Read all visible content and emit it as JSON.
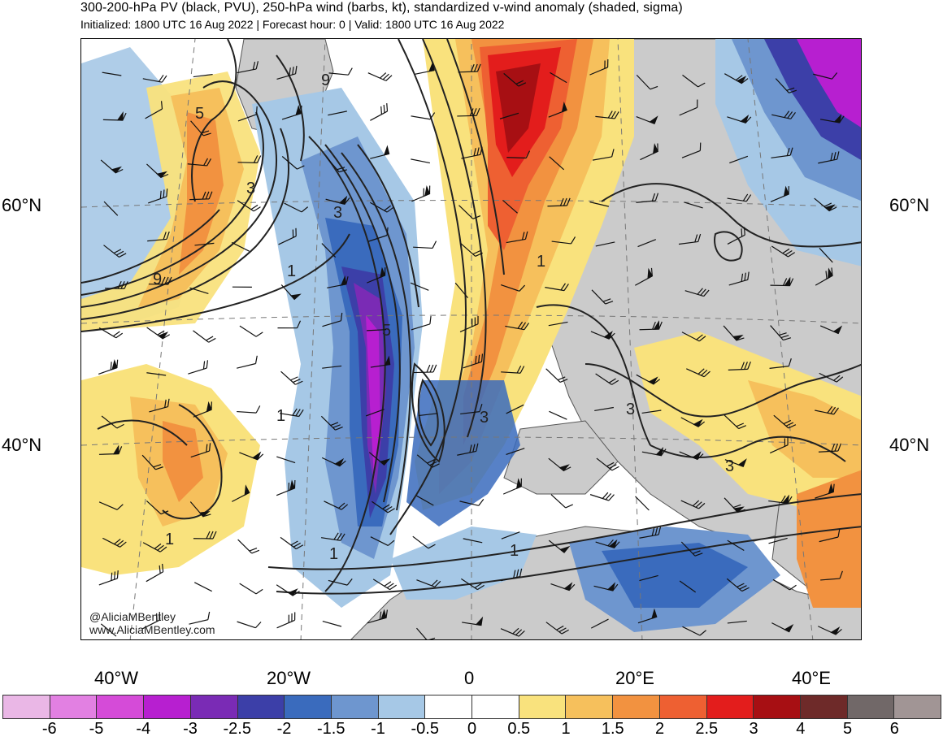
{
  "title": "300-200-hPa PV (black, PVU), 250-hPa wind (barbs, kt), standardized v-wind anomaly (shaded, sigma)",
  "subtitle": "Initialized: 1800 UTC 16 Aug 2022 | Forecast hour: 0 | Valid: 1800 UTC 16 Aug 2022",
  "lat_labels": {
    "lat60": "60°N",
    "lat40": "40°N"
  },
  "lon_labels": {
    "w40": "40°W",
    "w20": "20°W",
    "zero": "0",
    "e20": "20°E",
    "e40": "40°E"
  },
  "credit": {
    "handle": "@AliciaMBentley",
    "site": "www.AliciaMBentley.com"
  },
  "contour_labels": [
    "5",
    "3",
    "9",
    "3",
    "1",
    "5",
    "1",
    "3",
    "1",
    "3",
    "3",
    "1",
    "1",
    "1",
    "9"
  ],
  "colorbar": {
    "colors": [
      "#eab7e6",
      "#e280e2",
      "#d54bd8",
      "#b71fd0",
      "#7a2bb5",
      "#3c3fa8",
      "#3a6bbd",
      "#6e96cf",
      "#a6c8e6",
      "#ffffff",
      "#ffffff",
      "#f9e27d",
      "#f6c05c",
      "#f29240",
      "#ee6032",
      "#e31d1c",
      "#a70f13",
      "#6e2a29",
      "#716868",
      "#a19595"
    ],
    "labels": [
      "-6",
      "-5",
      "-4",
      "-3",
      "-2.5",
      "-2",
      "-1.5",
      "-1",
      "-0.5",
      "0",
      "0.5",
      "1",
      "1.5",
      "2",
      "2.5",
      "3",
      "4",
      "5",
      "6"
    ]
  },
  "colors": {
    "land": "#cbcbcb",
    "contour": "#222222",
    "graticule": "#777777"
  }
}
